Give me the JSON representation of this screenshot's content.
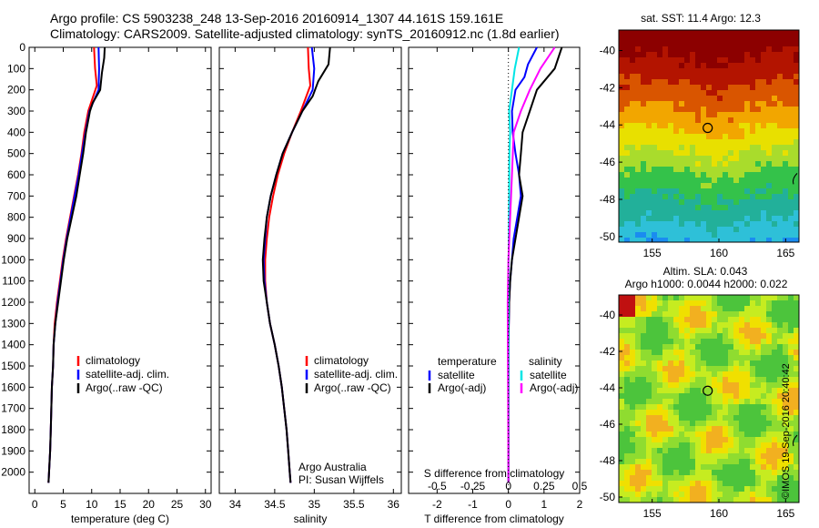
{
  "header": {
    "line1": "Argo profile: CS 5903238_248 13-Sep-2016 20160914_1307 44.161S 159.161E",
    "line2": "Climatology: CARS2009. Satellite-adjusted climatology: synTS_20160912.nc (1.8d earlier)"
  },
  "credit": "©IMOS 19-Sep-2016 20:40:42",
  "colors": {
    "climatology": "#ff0000",
    "satellite": "#0000ff",
    "argo": "#000000",
    "salinity_satellite": "#00e5e5",
    "salinity_argo": "#ff00ff"
  },
  "chart_data": [
    {
      "type": "line",
      "id": "temperature_profile",
      "xlabel": "temperature (deg C)",
      "ylabel": "",
      "xlim": [
        -1,
        31
      ],
      "ylim": [
        2100,
        0
      ],
      "xticks": [
        0,
        5,
        10,
        15,
        20,
        25,
        30
      ],
      "yticks": [
        0,
        100,
        200,
        300,
        400,
        500,
        600,
        700,
        800,
        900,
        1000,
        1100,
        1200,
        1300,
        1400,
        1500,
        1600,
        1700,
        1800,
        1900,
        2000
      ],
      "legend": [
        "climatology",
        "satellite-adj. clim.",
        "Argo(..raw -QC)"
      ],
      "series": [
        {
          "name": "climatology",
          "color": "#ff0000",
          "points": [
            [
              10.4,
              0
            ],
            [
              10.6,
              100
            ],
            [
              10.9,
              180
            ],
            [
              9.4,
              300
            ],
            [
              8.7,
              400
            ],
            [
              8.2,
              500
            ],
            [
              7.6,
              600
            ],
            [
              6.9,
              700
            ],
            [
              6.2,
              800
            ],
            [
              5.5,
              900
            ],
            [
              4.9,
              1000
            ],
            [
              4.4,
              1100
            ],
            [
              3.9,
              1200
            ],
            [
              3.5,
              1300
            ],
            [
              3.3,
              1400
            ],
            [
              3.2,
              1500
            ],
            [
              3.0,
              1600
            ],
            [
              2.9,
              1700
            ],
            [
              2.8,
              1800
            ],
            [
              2.7,
              1900
            ],
            [
              2.5,
              2000
            ],
            [
              2.4,
              2050
            ]
          ]
        },
        {
          "name": "satellite-adj. clim.",
          "color": "#0000ff",
          "points": [
            [
              11.2,
              0
            ],
            [
              11.3,
              100
            ],
            [
              11.2,
              200
            ],
            [
              9.6,
              300
            ],
            [
              8.9,
              400
            ],
            [
              8.3,
              500
            ],
            [
              7.7,
              600
            ],
            [
              7.0,
              700
            ],
            [
              6.3,
              800
            ],
            [
              5.6,
              900
            ],
            [
              5.0,
              1000
            ],
            [
              4.5,
              1100
            ],
            [
              4.0,
              1200
            ],
            [
              3.6,
              1300
            ],
            [
              3.3,
              1400
            ],
            [
              3.2,
              1500
            ],
            [
              3.0,
              1600
            ],
            [
              2.9,
              1700
            ],
            [
              2.8,
              1800
            ],
            [
              2.7,
              1900
            ],
            [
              2.5,
              2000
            ],
            [
              2.4,
              2050
            ]
          ]
        },
        {
          "name": "Argo(..raw -QC)",
          "color": "#000000",
          "points": [
            [
              12.3,
              0
            ],
            [
              12.2,
              50
            ],
            [
              11.8,
              120
            ],
            [
              11.5,
              200
            ],
            [
              10.2,
              260
            ],
            [
              9.7,
              300
            ],
            [
              9.0,
              400
            ],
            [
              8.5,
              500
            ],
            [
              7.9,
              600
            ],
            [
              7.3,
              700
            ],
            [
              6.5,
              800
            ],
            [
              5.7,
              900
            ],
            [
              5.1,
              1000
            ],
            [
              4.6,
              1100
            ],
            [
              4.1,
              1200
            ],
            [
              3.6,
              1300
            ],
            [
              3.3,
              1400
            ],
            [
              3.2,
              1500
            ],
            [
              3.0,
              1600
            ],
            [
              2.9,
              1700
            ],
            [
              2.8,
              1800
            ],
            [
              2.7,
              1900
            ],
            [
              2.5,
              2000
            ],
            [
              2.4,
              2050
            ]
          ]
        }
      ]
    },
    {
      "type": "line",
      "id": "salinity_profile",
      "xlabel": "salinity",
      "xlim": [
        33.8,
        36.1
      ],
      "ylim": [
        2100,
        0
      ],
      "xticks": [
        34,
        34.5,
        35,
        35.5,
        36
      ],
      "legend": [
        "climatology",
        "satellite-adj. clim.",
        "Argo(..raw -QC)"
      ],
      "annotation": [
        "Argo Australia",
        "PI: Susan Wijffels"
      ],
      "series": [
        {
          "name": "climatology",
          "color": "#ff0000",
          "points": [
            [
              34.92,
              0
            ],
            [
              34.93,
              100
            ],
            [
              34.95,
              180
            ],
            [
              34.83,
              300
            ],
            [
              34.72,
              400
            ],
            [
              34.62,
              500
            ],
            [
              34.54,
              600
            ],
            [
              34.48,
              700
            ],
            [
              34.43,
              800
            ],
            [
              34.4,
              900
            ],
            [
              34.38,
              1000
            ],
            [
              34.38,
              1100
            ],
            [
              34.4,
              1200
            ],
            [
              34.44,
              1300
            ],
            [
              34.5,
              1400
            ],
            [
              34.55,
              1500
            ],
            [
              34.59,
              1600
            ],
            [
              34.62,
              1700
            ],
            [
              34.65,
              1800
            ],
            [
              34.67,
              1900
            ],
            [
              34.69,
              2000
            ],
            [
              34.7,
              2050
            ]
          ]
        },
        {
          "name": "satellite-adj. clim.",
          "color": "#0000ff",
          "points": [
            [
              34.97,
              0
            ],
            [
              35.0,
              100
            ],
            [
              34.98,
              200
            ],
            [
              34.85,
              300
            ],
            [
              34.72,
              400
            ],
            [
              34.6,
              500
            ],
            [
              34.52,
              600
            ],
            [
              34.45,
              700
            ],
            [
              34.4,
              800
            ],
            [
              34.38,
              900
            ],
            [
              34.36,
              1000
            ],
            [
              34.37,
              1100
            ],
            [
              34.4,
              1200
            ],
            [
              34.44,
              1300
            ],
            [
              34.5,
              1400
            ],
            [
              34.55,
              1500
            ],
            [
              34.59,
              1600
            ],
            [
              34.62,
              1700
            ],
            [
              34.65,
              1800
            ],
            [
              34.67,
              1900
            ],
            [
              34.69,
              2000
            ],
            [
              34.7,
              2050
            ]
          ]
        },
        {
          "name": "Argo(..raw -QC)",
          "color": "#000000",
          "points": [
            [
              35.2,
              0
            ],
            [
              35.18,
              80
            ],
            [
              35.05,
              160
            ],
            [
              34.98,
              230
            ],
            [
              34.85,
              300
            ],
            [
              34.72,
              400
            ],
            [
              34.6,
              500
            ],
            [
              34.52,
              600
            ],
            [
              34.45,
              700
            ],
            [
              34.4,
              800
            ],
            [
              34.37,
              900
            ],
            [
              34.35,
              1000
            ],
            [
              34.36,
              1100
            ],
            [
              34.4,
              1200
            ],
            [
              34.44,
              1300
            ],
            [
              34.5,
              1400
            ],
            [
              34.55,
              1500
            ],
            [
              34.59,
              1600
            ],
            [
              34.62,
              1700
            ],
            [
              34.65,
              1800
            ],
            [
              34.67,
              1900
            ],
            [
              34.69,
              2000
            ],
            [
              34.7,
              2050
            ]
          ]
        }
      ]
    },
    {
      "type": "line",
      "id": "difference_profile",
      "xlabel": "T difference from climatology",
      "xlabel_top": "S difference from climatology",
      "xlim": [
        -2.8,
        2.0
      ],
      "ylim": [
        2100,
        0
      ],
      "xticks": [
        -2,
        -1,
        0,
        1,
        2
      ],
      "xticklabels": [
        "-2",
        "-1",
        "0",
        "1",
        "2"
      ],
      "sticks": [
        -0.5,
        -0.25,
        0,
        0.25,
        0.5
      ],
      "sticklabels": [
        "-0.5",
        "-0.25",
        "0",
        "0.25",
        "0.5"
      ],
      "legend_temperature": {
        "heading": "temperature",
        "items": [
          "satellite",
          "Argo(-adj)"
        ]
      },
      "legend_salinity": {
        "heading": "salinity",
        "items": [
          "satellite",
          "Argo(-adj)"
        ]
      },
      "series": [
        {
          "name": "temperature satellite",
          "color": "#0000ff",
          "points": [
            [
              0.8,
              0
            ],
            [
              0.55,
              80
            ],
            [
              0.45,
              140
            ],
            [
              0.2,
              200
            ],
            [
              0.1,
              300
            ],
            [
              0.12,
              400
            ],
            [
              0.2,
              500
            ],
            [
              0.3,
              600
            ],
            [
              0.35,
              700
            ],
            [
              0.25,
              800
            ],
            [
              0.15,
              900
            ],
            [
              0.1,
              1000
            ],
            [
              0.05,
              1100
            ],
            [
              0.02,
              1200
            ],
            [
              0.0,
              1400
            ],
            [
              0.0,
              2050
            ]
          ]
        },
        {
          "name": "temperature Argo(-adj)",
          "color": "#000000",
          "points": [
            [
              1.5,
              0
            ],
            [
              1.3,
              100
            ],
            [
              0.8,
              200
            ],
            [
              0.6,
              300
            ],
            [
              0.4,
              400
            ],
            [
              0.35,
              500
            ],
            [
              0.3,
              600
            ],
            [
              0.4,
              700
            ],
            [
              0.3,
              800
            ],
            [
              0.2,
              900
            ],
            [
              0.1,
              1000
            ],
            [
              0.05,
              1100
            ],
            [
              0.02,
              1200
            ],
            [
              0.0,
              1400
            ],
            [
              0.0,
              2050
            ]
          ]
        },
        {
          "name": "salinity satellite",
          "color": "#00e5e5",
          "points": [
            [
              0.3,
              0
            ],
            [
              0.18,
              100
            ],
            [
              0.1,
              200
            ],
            [
              0.02,
              300
            ],
            [
              0.05,
              400
            ],
            [
              0.03,
              500
            ],
            [
              0.02,
              700
            ],
            [
              0.01,
              900
            ],
            [
              0.0,
              1100
            ],
            [
              0.0,
              2050
            ]
          ]
        },
        {
          "name": "salinity Argo(-adj)",
          "color": "#ff00ff",
          "points": [
            [
              1.3,
              0
            ],
            [
              0.9,
              100
            ],
            [
              0.6,
              200
            ],
            [
              0.35,
              300
            ],
            [
              0.15,
              400
            ],
            [
              0.1,
              600
            ],
            [
              0.05,
              800
            ],
            [
              0.0,
              1000
            ],
            [
              -0.02,
              1200
            ],
            [
              0.0,
              2050
            ]
          ]
        }
      ]
    },
    {
      "type": "heatmap",
      "id": "sst_map",
      "title": "sat. SST: 11.4  Argo: 12.3",
      "xlim": [
        152.5,
        166
      ],
      "ylim": [
        -50.3,
        -38.9
      ],
      "xticks": [
        155,
        160,
        165
      ],
      "yticks": [
        -40,
        -42,
        -44,
        -46,
        -48,
        -50
      ],
      "marker": {
        "lon": 159.161,
        "lat": -44.161
      }
    },
    {
      "type": "heatmap",
      "id": "sla_map",
      "title": "Altim. SLA: 0.043",
      "subtitle": "Argo h1000: 0.0044  h2000: 0.022",
      "xlim": [
        152.5,
        166
      ],
      "ylim": [
        -50.3,
        -38.9
      ],
      "xticks": [
        155,
        160,
        165
      ],
      "yticks": [
        -40,
        -42,
        -44,
        -46,
        -48,
        -50
      ],
      "marker": {
        "lon": 159.161,
        "lat": -44.161
      }
    }
  ]
}
